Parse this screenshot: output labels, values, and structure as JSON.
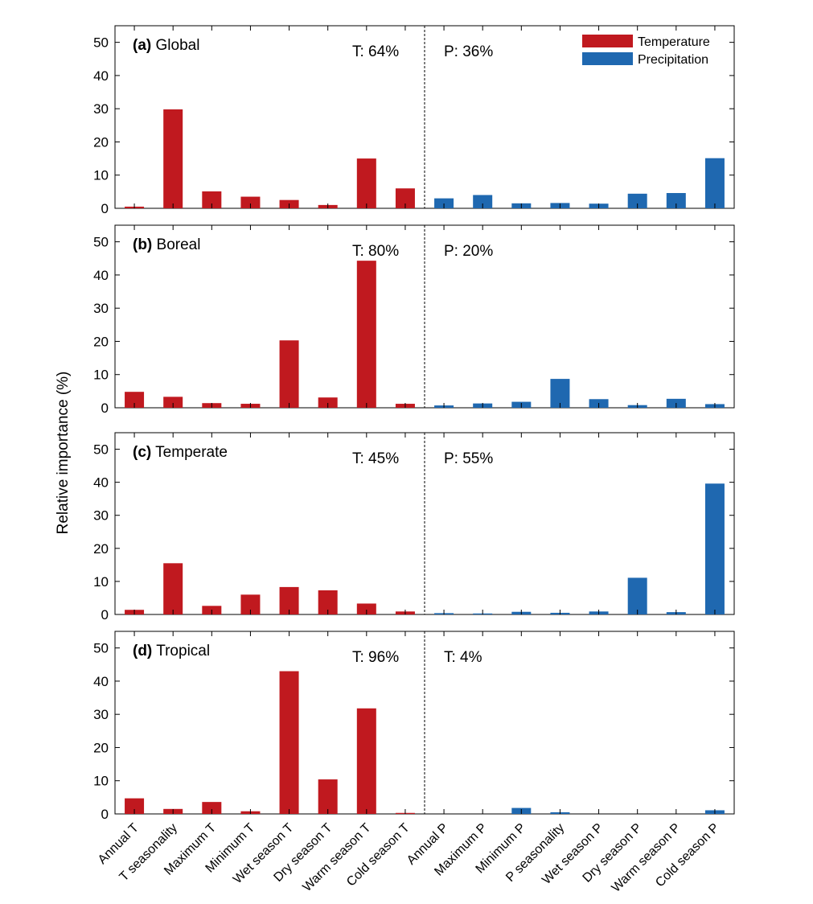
{
  "figure": {
    "ylabel": "Relative importance (%)",
    "categories": [
      "Annual T",
      "T seasonality",
      "Maximum T",
      "Minimum T",
      "Wet season T",
      "Dry season T",
      "Warm season T",
      "Cold season T",
      "Annual P",
      "Maximum P",
      "Minimum P",
      "P seasonality",
      "Wet season P",
      "Dry season P",
      "Warm season P",
      "Cold season P"
    ],
    "yticks": [
      "0",
      "10",
      "20",
      "30",
      "40",
      "50"
    ],
    "legend": [
      {
        "label": "Temperature",
        "color": "#c0191f"
      },
      {
        "label": "Precipitation",
        "color": "#1f68b0"
      }
    ]
  },
  "chart_data": [
    {
      "type": "bar",
      "panel_tag": "(a)",
      "panel_name": "Global",
      "t_share": "T: 64%",
      "p_share": "P: 36%",
      "ylim": [
        0,
        55
      ],
      "series": [
        {
          "name": "Temperature",
          "color": "#c0191f",
          "values": [
            0.5,
            29.8,
            5.1,
            3.5,
            2.5,
            1.0,
            15.0,
            6.0
          ]
        },
        {
          "name": "Precipitation",
          "color": "#1f68b0",
          "values": [
            3.0,
            4.0,
            1.5,
            1.6,
            1.4,
            4.4,
            4.6,
            15.1
          ]
        }
      ],
      "legend_position": "top-right"
    },
    {
      "type": "bar",
      "panel_tag": "(b)",
      "panel_name": "Boreal",
      "t_share": "T: 80%",
      "p_share": "P: 20%",
      "ylim": [
        0,
        55
      ],
      "series": [
        {
          "name": "Temperature",
          "color": "#c0191f",
          "values": [
            4.8,
            3.3,
            1.4,
            1.2,
            20.3,
            3.1,
            44.3,
            1.2
          ]
        },
        {
          "name": "Precipitation",
          "color": "#1f68b0",
          "values": [
            0.7,
            1.3,
            1.8,
            8.7,
            2.6,
            0.8,
            2.7,
            1.1
          ]
        }
      ]
    },
    {
      "type": "bar",
      "panel_tag": "(c)",
      "panel_name": "Temperate",
      "t_share": "T: 45%",
      "p_share": "P: 55%",
      "ylim": [
        0,
        55
      ],
      "series": [
        {
          "name": "Temperature",
          "color": "#c0191f",
          "values": [
            1.4,
            15.5,
            2.6,
            6.0,
            8.3,
            7.3,
            3.3,
            0.9
          ]
        },
        {
          "name": "Precipitation",
          "color": "#1f68b0",
          "values": [
            0.4,
            0.3,
            0.8,
            0.5,
            0.9,
            11.1,
            0.7,
            39.6
          ]
        }
      ]
    },
    {
      "type": "bar",
      "panel_tag": "(d)",
      "panel_name": "Tropical",
      "t_share": "T: 96%",
      "p_share": "T: 4%",
      "ylim": [
        0,
        55
      ],
      "series": [
        {
          "name": "Temperature",
          "color": "#c0191f",
          "values": [
            4.7,
            1.5,
            3.6,
            0.8,
            43.0,
            10.4,
            31.8,
            0.3
          ]
        },
        {
          "name": "Precipitation",
          "color": "#1f68b0",
          "values": [
            0.0,
            0.0,
            1.8,
            0.5,
            0.0,
            0.0,
            0.0,
            1.1
          ]
        }
      ]
    }
  ]
}
